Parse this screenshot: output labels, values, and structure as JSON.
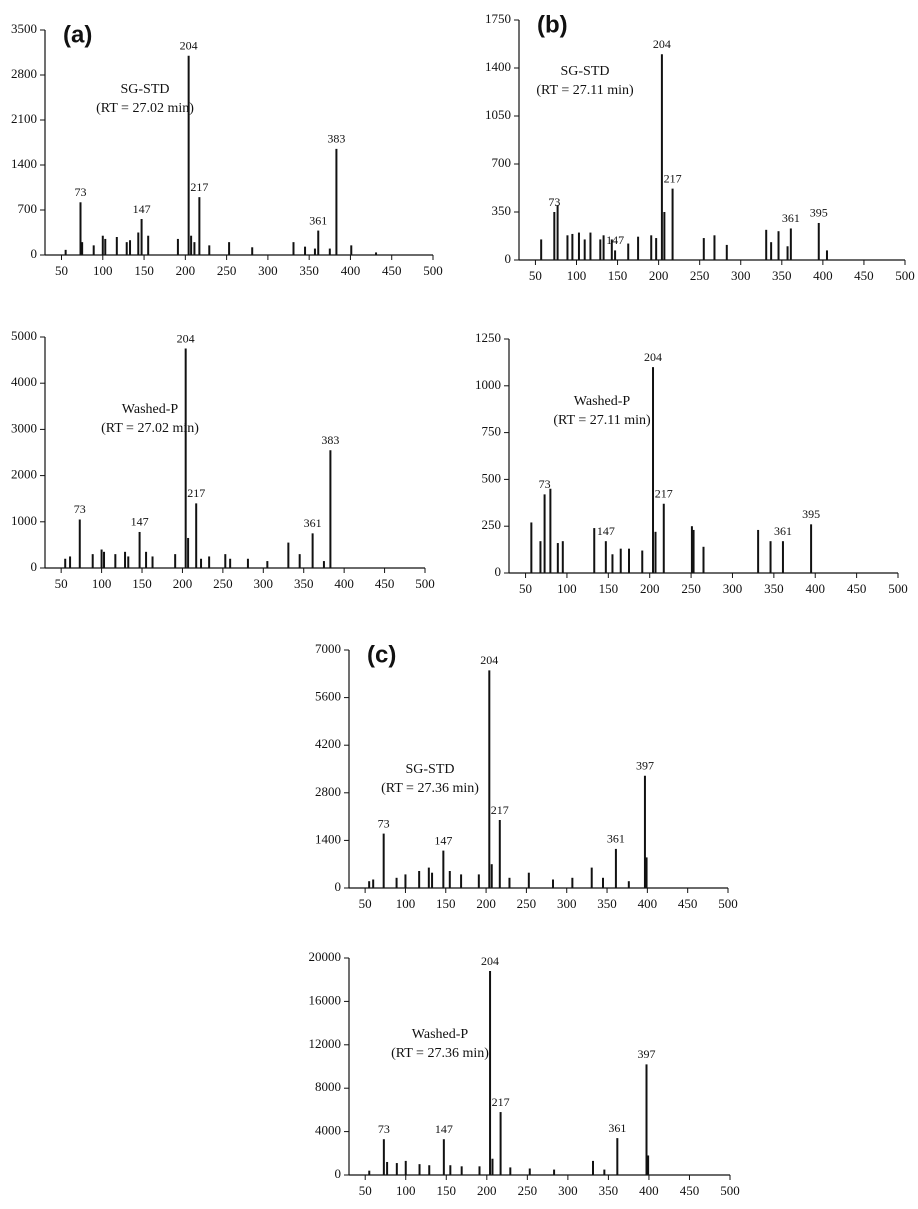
{
  "chart_data": [
    {
      "type": "bar",
      "title": "(a)",
      "annotation": [
        "SG-STD",
        "(RT = 27.02 min)"
      ],
      "x": [
        55,
        73,
        75,
        89,
        100,
        103,
        117,
        129,
        133,
        143,
        147,
        155,
        191,
        204,
        207,
        211,
        217,
        229,
        253,
        281,
        331,
        345,
        357,
        361,
        375,
        383,
        401,
        431
      ],
      "values": [
        80,
        820,
        200,
        150,
        300,
        250,
        280,
        200,
        230,
        350,
        560,
        300,
        250,
        3100,
        300,
        200,
        900,
        150,
        200,
        120,
        200,
        130,
        100,
        380,
        100,
        1650,
        150,
        40
      ],
      "x_labels": [
        null,
        "73",
        null,
        null,
        null,
        null,
        null,
        null,
        null,
        null,
        "147",
        null,
        null,
        "204",
        null,
        null,
        "217",
        null,
        null,
        null,
        null,
        null,
        null,
        "361",
        null,
        "383",
        null,
        null
      ],
      "color": "#111111",
      "xlim": [
        30,
        500
      ],
      "xticks": [
        50,
        100,
        150,
        200,
        250,
        300,
        350,
        400,
        450,
        500
      ],
      "ylim": [
        0,
        3500
      ],
      "yticks": [
        0,
        700,
        1400,
        2100,
        2800,
        3500
      ]
    },
    {
      "type": "bar",
      "annotation": [
        "Washed-P",
        "(RT = 27.02 min)"
      ],
      "x": [
        55,
        61,
        73,
        89,
        100,
        103,
        117,
        129,
        133,
        147,
        155,
        163,
        191,
        204,
        207,
        217,
        223,
        233,
        253,
        259,
        281,
        305,
        331,
        345,
        361,
        375,
        383
      ],
      "values": [
        200,
        250,
        1050,
        300,
        400,
        350,
        300,
        350,
        250,
        780,
        350,
        250,
        300,
        4750,
        650,
        1400,
        200,
        250,
        300,
        200,
        200,
        150,
        550,
        300,
        750,
        150,
        2550
      ],
      "x_labels": [
        null,
        null,
        "73",
        null,
        null,
        null,
        null,
        null,
        null,
        "147",
        null,
        null,
        null,
        "204",
        null,
        "217",
        null,
        null,
        null,
        null,
        null,
        null,
        null,
        null,
        "361",
        null,
        "383"
      ],
      "color": "#111111",
      "xlim": [
        30,
        500
      ],
      "xticks": [
        50,
        100,
        150,
        200,
        250,
        300,
        350,
        400,
        450,
        500
      ],
      "ylim": [
        0,
        5000
      ],
      "yticks": [
        0,
        1000,
        2000,
        3000,
        4000,
        5000
      ]
    },
    {
      "type": "bar",
      "title": "(b)",
      "annotation": [
        "SG-STD",
        "(RT = 27.11 min)"
      ],
      "x": [
        57,
        73,
        77,
        89,
        95,
        103,
        110,
        117,
        129,
        133,
        143,
        147,
        163,
        175,
        191,
        197,
        204,
        207,
        217,
        255,
        268,
        283,
        331,
        337,
        346,
        357,
        361,
        395,
        405
      ],
      "values": [
        150,
        350,
        400,
        180,
        190,
        200,
        150,
        200,
        150,
        180,
        150,
        70,
        120,
        170,
        180,
        160,
        1500,
        350,
        520,
        160,
        180,
        110,
        220,
        130,
        210,
        100,
        230,
        270,
        70
      ],
      "x_labels": [
        null,
        "73",
        null,
        null,
        null,
        null,
        null,
        null,
        null,
        null,
        null,
        "147",
        null,
        null,
        null,
        null,
        "204",
        null,
        "217",
        null,
        null,
        null,
        null,
        null,
        null,
        null,
        "361",
        "395",
        null
      ],
      "color": "#111111",
      "xlim": [
        30,
        500
      ],
      "xticks": [
        50,
        100,
        150,
        200,
        250,
        300,
        350,
        400,
        450,
        500
      ],
      "ylim": [
        0,
        1750
      ],
      "yticks": [
        0,
        350,
        700,
        1050,
        1400,
        1750
      ]
    },
    {
      "type": "bar",
      "annotation": [
        "Washed-P",
        "(RT = 27.11 min)"
      ],
      "x": [
        57,
        68,
        73,
        80,
        89,
        95,
        133,
        147,
        155,
        165,
        175,
        191,
        204,
        207,
        217,
        251,
        253,
        265,
        331,
        346,
        361,
        395
      ],
      "values": [
        270,
        170,
        420,
        450,
        160,
        170,
        240,
        170,
        100,
        130,
        130,
        120,
        1100,
        220,
        370,
        250,
        230,
        140,
        230,
        170,
        170,
        260
      ],
      "x_labels": [
        null,
        null,
        "73",
        null,
        null,
        null,
        null,
        "147",
        null,
        null,
        null,
        null,
        "204",
        null,
        "217",
        null,
        null,
        null,
        null,
        null,
        "361",
        "395"
      ],
      "color": "#111111",
      "xlim": [
        30,
        500
      ],
      "xticks": [
        50,
        100,
        150,
        200,
        250,
        300,
        350,
        400,
        450,
        500
      ],
      "ylim": [
        0,
        1250
      ],
      "yticks": [
        0,
        250,
        500,
        750,
        1000,
        1250
      ]
    },
    {
      "type": "bar",
      "title": "(c)",
      "annotation": [
        "SG-STD",
        "(RT = 27.36 min)"
      ],
      "x": [
        55,
        60,
        73,
        89,
        100,
        117,
        129,
        133,
        147,
        155,
        169,
        191,
        204,
        207,
        217,
        229,
        253,
        283,
        307,
        331,
        345,
        361,
        377,
        397,
        399
      ],
      "values": [
        200,
        250,
        1600,
        300,
        400,
        500,
        600,
        450,
        1100,
        500,
        400,
        400,
        6400,
        700,
        2000,
        300,
        450,
        250,
        300,
        600,
        300,
        1150,
        200,
        3300,
        900
      ],
      "x_labels": [
        null,
        null,
        "73",
        null,
        null,
        null,
        null,
        null,
        "147",
        null,
        null,
        null,
        "204",
        null,
        "217",
        null,
        null,
        null,
        null,
        null,
        null,
        "361",
        null,
        "397",
        null
      ],
      "color": "#111111",
      "xlim": [
        30,
        500
      ],
      "xticks": [
        50,
        100,
        150,
        200,
        250,
        300,
        350,
        400,
        450,
        500
      ],
      "ylim": [
        0,
        7000
      ],
      "yticks": [
        0,
        1400,
        2800,
        4200,
        5600,
        7000
      ]
    },
    {
      "type": "bar",
      "annotation": [
        "Washed-P",
        "(RT = 27.36 min)"
      ],
      "x": [
        55,
        73,
        77,
        89,
        100,
        117,
        129,
        147,
        155,
        169,
        191,
        204,
        207,
        217,
        229,
        253,
        283,
        331,
        345,
        361,
        397,
        399
      ],
      "values": [
        400,
        3300,
        1200,
        1100,
        1300,
        1000,
        900,
        3300,
        900,
        800,
        800,
        18800,
        1500,
        5800,
        700,
        600,
        500,
        1300,
        500,
        3400,
        10200,
        1800
      ],
      "x_labels": [
        null,
        "73",
        null,
        null,
        null,
        null,
        null,
        "147",
        null,
        null,
        null,
        "204",
        null,
        "217",
        null,
        null,
        null,
        null,
        null,
        "361",
        "397",
        null
      ],
      "color": "#111111",
      "xlim": [
        30,
        500
      ],
      "xticks": [
        50,
        100,
        150,
        200,
        250,
        300,
        350,
        400,
        450,
        500
      ],
      "ylim": [
        0,
        20000
      ],
      "yticks": [
        0,
        4000,
        8000,
        12000,
        16000,
        20000
      ]
    }
  ]
}
